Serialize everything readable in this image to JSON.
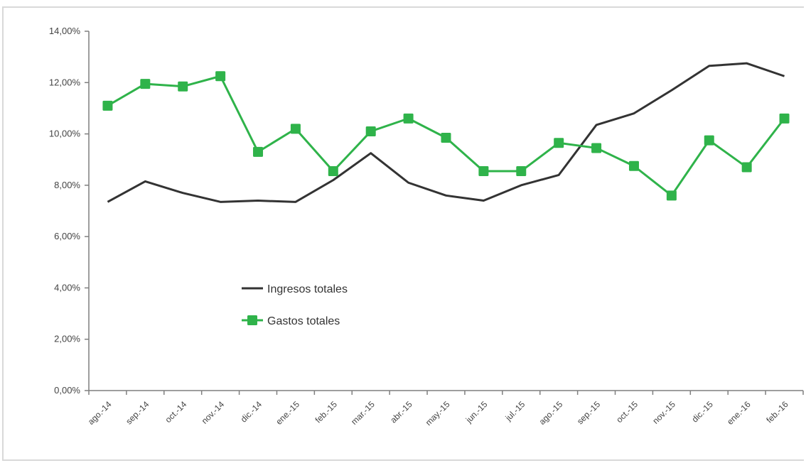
{
  "chart_data": {
    "type": "line",
    "title": "",
    "xlabel": "",
    "ylabel": "",
    "categories": [
      "ago.-14",
      "sep.-14",
      "oct.-14",
      "nov.-14",
      "dic.-14",
      "ene.-15",
      "feb.-15",
      "mar.-15",
      "abr.-15",
      "may.-15",
      "jun.-15",
      "jul.-15",
      "ago.-15",
      "sep.-15",
      "oct.-15",
      "nov.-15",
      "dic.-15",
      "ene.-16",
      "feb.-16"
    ],
    "ylim": [
      0,
      14
    ],
    "yticks": [
      0,
      2,
      4,
      6,
      8,
      10,
      12,
      14
    ],
    "ytick_labels": [
      "0,00%",
      "2,00%",
      "4,00%",
      "6,00%",
      "8,00%",
      "10,00%",
      "12,00%",
      "14,00%"
    ],
    "grid": false,
    "legend_position": "center-left",
    "series": [
      {
        "name": "Ingresos totales",
        "color": "#333333",
        "marker": "none",
        "values": [
          7.35,
          8.15,
          7.7,
          7.35,
          7.4,
          7.35,
          8.2,
          9.25,
          8.1,
          7.6,
          7.4,
          8.0,
          8.4,
          10.35,
          10.8,
          11.7,
          12.65,
          12.75,
          12.25
        ]
      },
      {
        "name": "Gastos totales",
        "color": "#2fb34a",
        "marker": "square",
        "values": [
          11.1,
          11.95,
          11.85,
          12.25,
          9.3,
          10.2,
          8.55,
          10.1,
          10.6,
          9.85,
          8.55,
          8.55,
          9.65,
          9.45,
          8.75,
          7.6,
          9.75,
          8.7,
          10.6
        ]
      }
    ]
  }
}
